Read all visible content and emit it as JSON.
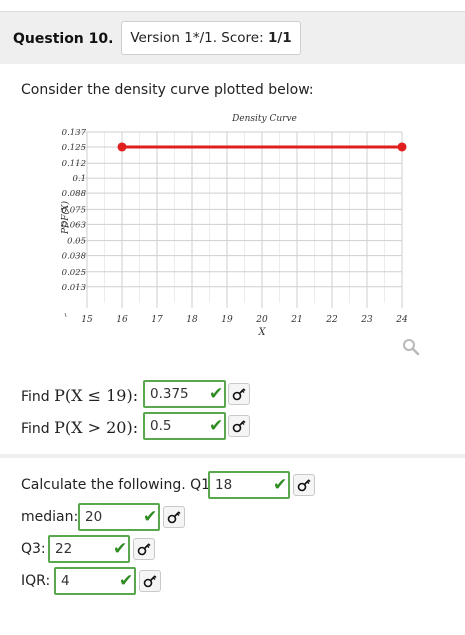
{
  "question": {
    "title": "Question 10.",
    "version_prefix": "Version 1*/1. Score: ",
    "score": "1/1"
  },
  "prompt": "Consider the density curve plotted below:",
  "chart_data": {
    "type": "line",
    "title": "Density Curve",
    "xlabel": "X",
    "ylabel": "PDF(X)",
    "x": [
      16,
      24
    ],
    "y": [
      0.125,
      0.125
    ],
    "xlim": [
      15,
      24
    ],
    "ylim": [
      0,
      0.137
    ],
    "xticks": [
      "15",
      "16",
      "17",
      "18",
      "19",
      "20",
      "21",
      "22",
      "23",
      "24"
    ],
    "yticks": [
      "0.137",
      "0.125",
      "0.112",
      "0.1",
      "0.088",
      "0.075",
      "0.063",
      "0.05",
      "0.038",
      "0.025",
      "0.013"
    ],
    "line_color": "#e01e1e",
    "grid": true
  },
  "find1": {
    "prefix": "Find ",
    "math": "P(X ≤ 19):",
    "answer": "0.375"
  },
  "find2": {
    "prefix": "Find ",
    "math": "P(X > 20):",
    "answer": "0.5"
  },
  "calc": {
    "label": "Calculate the following. Q1:",
    "q1_answer": "18",
    "median_label": "median:",
    "median_answer": "20",
    "q3_label": "Q3:",
    "q3_answer": "22",
    "iqr_label": "IQR:",
    "iqr_answer": "4"
  },
  "colors": {
    "correct": "#59a84d",
    "check": "#2f8d24"
  },
  "icons": {
    "correct": "check-icon",
    "key": "key-icon",
    "zoom": "magnifier-icon"
  }
}
